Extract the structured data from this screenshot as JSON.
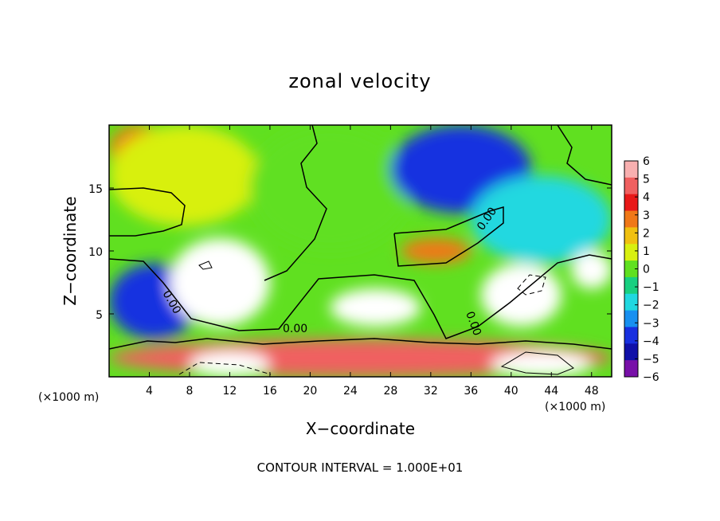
{
  "chart_data": {
    "type": "heatmap",
    "title": "zonal velocity",
    "xlabel": "X−coordinate",
    "ylabel": "Z−coordinate",
    "x_unit": "(×1000 m)",
    "xlim": [
      0,
      50
    ],
    "ylim": [
      0,
      20
    ],
    "x_ticks": [
      4,
      8,
      12,
      16,
      20,
      24,
      28,
      32,
      36,
      40,
      44,
      48
    ],
    "y_ticks": [
      5,
      10,
      15
    ],
    "footer": "CONTOUR INTERVAL = 1.000E+01",
    "colorbar": {
      "ticks": [
        6,
        5,
        4,
        3,
        2,
        1,
        0,
        -1,
        -2,
        -3,
        -4,
        -5,
        -6
      ],
      "tick_labels": [
        "6",
        "5",
        "4",
        "3",
        "2",
        "1",
        "0",
        "−1",
        "−2",
        "−3",
        "−4",
        "−5",
        "−6"
      ],
      "colors": [
        "#f8b0b0",
        "#f06060",
        "#e81818",
        "#f07818",
        "#f0c010",
        "#d8f010",
        "#60e020",
        "#18d080",
        "#20d8e0",
        "#1890f0",
        "#1830e0",
        "#1010a8",
        "#7810a8"
      ],
      "range": [
        -6,
        6
      ]
    },
    "contour_labels": [
      "0.00",
      "0.00",
      "0.00",
      "0.00",
      "0.00"
    ],
    "regions": [
      {
        "x": [
          0,
          6
        ],
        "z": [
          16,
          20
        ],
        "value": 3
      },
      {
        "x": [
          0,
          15
        ],
        "z": [
          12,
          20
        ],
        "value": 1
      },
      {
        "x": [
          14,
          30
        ],
        "z": [
          10,
          20
        ],
        "value": 0.5
      },
      {
        "x": [
          28,
          42
        ],
        "z": [
          13,
          20
        ],
        "value": -4
      },
      {
        "x": [
          36,
          50
        ],
        "z": [
          9,
          16
        ],
        "value": -2
      },
      {
        "x": [
          0,
          9
        ],
        "z": [
          3,
          9
        ],
        "value": -4
      },
      {
        "x": [
          6,
          16
        ],
        "z": [
          4,
          11
        ],
        "value": 6
      },
      {
        "x": [
          22,
          31
        ],
        "z": [
          4,
          7
        ],
        "value": 6
      },
      {
        "x": [
          37,
          45
        ],
        "z": [
          4,
          9
        ],
        "value": 6
      },
      {
        "x": [
          29,
          36
        ],
        "z": [
          9,
          11
        ],
        "value": 3
      },
      {
        "x": [
          0,
          50
        ],
        "z": [
          0,
          3
        ],
        "value": 5
      },
      {
        "x": [
          8,
          16
        ],
        "z": [
          0,
          2
        ],
        "value": 6
      },
      {
        "x": [
          38,
          48
        ],
        "z": [
          0,
          2
        ],
        "value": 6
      },
      {
        "x": [
          46,
          50
        ],
        "z": [
          7,
          10
        ],
        "value": 6
      }
    ]
  }
}
